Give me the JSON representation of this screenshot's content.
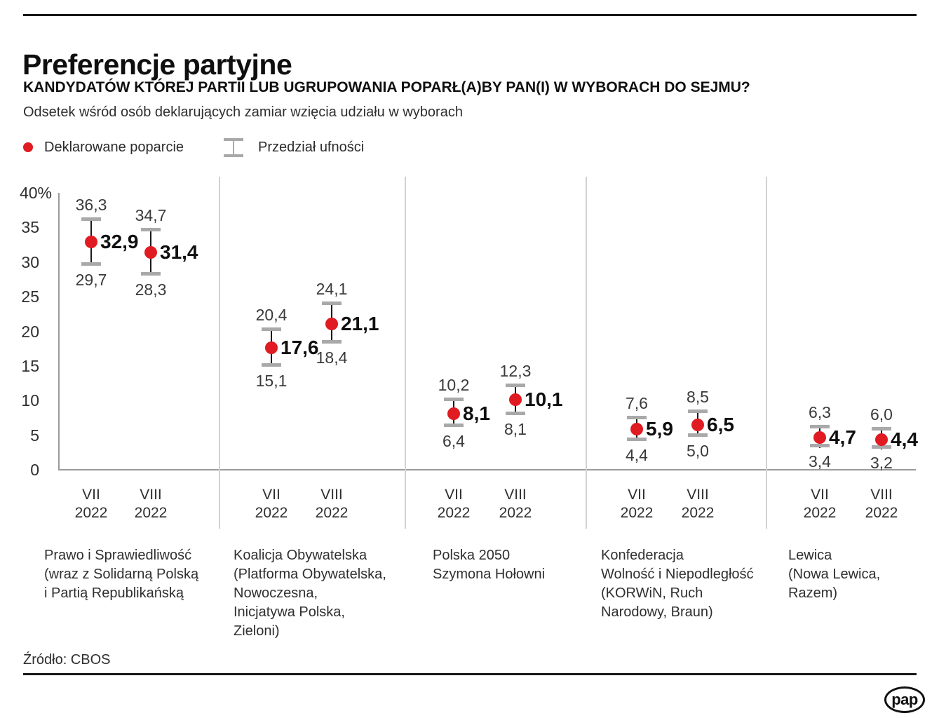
{
  "header": {
    "title": "Preferencje partyjne",
    "question": "KANDYDATÓW KTÓREJ PARTII LUB UGRUPOWANIA POPARŁ(A)BY PAN(I) W WYBORACH DO SEJMU?",
    "subtitle": "Odsetek wśród osób deklarujących zamiar wzięcia udziału w wyborach"
  },
  "legend": {
    "support_label": "Deklarowane poparcie",
    "support_icon": "red-dot-icon",
    "ci_label": "Przedział ufności",
    "ci_icon": "error-bar-icon"
  },
  "colors": {
    "accent_red": "#e01b22",
    "separator_gray": "#d2d2d2",
    "axis_gray": "#9b9b9b",
    "errorbar_cap_gray": "#a9a9a9",
    "text_dark": "#1a1a1a"
  },
  "footer": {
    "source": "Źródło: CBOS",
    "logo": "pap"
  },
  "chart_data": {
    "type": "scatter",
    "subtype": "dot-with-error-bars",
    "title": "Preferencje partyjne",
    "ylabel": "%",
    "ylim": [
      0,
      40
    ],
    "grid": false,
    "legend_position": "top-left",
    "y_axis": {
      "ticks": [
        {
          "v": 40,
          "label": "40%"
        },
        {
          "v": 35,
          "label": "35"
        },
        {
          "v": 30,
          "label": "30"
        },
        {
          "v": 25,
          "label": "25"
        },
        {
          "v": 20,
          "label": "20"
        },
        {
          "v": 15,
          "label": "15"
        },
        {
          "v": 10,
          "label": "10"
        },
        {
          "v": 5,
          "label": "5"
        },
        {
          "v": 0,
          "label": "0"
        }
      ]
    },
    "groups": [
      {
        "party": [
          "Prawo i Sprawiedliwość",
          "(wraz z Solidarną Polską",
          "i Partią Republikańską"
        ],
        "points": [
          {
            "period": [
              "VII",
              "2022"
            ],
            "value": 32.9,
            "label": "32,9",
            "ci_low": 29.7,
            "ci_low_label": "29,7",
            "ci_high": 36.3,
            "ci_high_label": "36,3"
          },
          {
            "period": [
              "VIII",
              "2022"
            ],
            "value": 31.4,
            "label": "31,4",
            "ci_low": 28.3,
            "ci_low_label": "28,3",
            "ci_high": 34.7,
            "ci_high_label": "34,7"
          }
        ]
      },
      {
        "party": [
          "Koalicja Obywatelska",
          "(Platforma Obywatelska,",
          "Nowoczesna,",
          "Inicjatywa Polska,",
          "Zieloni)"
        ],
        "points": [
          {
            "period": [
              "VII",
              "2022"
            ],
            "value": 17.6,
            "label": "17,6",
            "ci_low": 15.1,
            "ci_low_label": "15,1",
            "ci_high": 20.4,
            "ci_high_label": "20,4"
          },
          {
            "period": [
              "VIII",
              "2022"
            ],
            "value": 21.1,
            "label": "21,1",
            "ci_low": 18.4,
            "ci_low_label": "18,4",
            "ci_high": 24.1,
            "ci_high_label": "24,1"
          }
        ]
      },
      {
        "party": [
          "Polska 2050",
          "Szymona Hołowni"
        ],
        "points": [
          {
            "period": [
              "VII",
              "2022"
            ],
            "value": 8.1,
            "label": "8,1",
            "ci_low": 6.4,
            "ci_low_label": "6,4",
            "ci_high": 10.2,
            "ci_high_label": "10,2"
          },
          {
            "period": [
              "VIII",
              "2022"
            ],
            "value": 10.1,
            "label": "10,1",
            "ci_low": 8.1,
            "ci_low_label": "8,1",
            "ci_high": 12.3,
            "ci_high_label": "12,3"
          }
        ]
      },
      {
        "party": [
          "Konfederacja",
          "Wolność i Niepodległość",
          "(KORWiN, Ruch",
          "Narodowy, Braun)"
        ],
        "points": [
          {
            "period": [
              "VII",
              "2022"
            ],
            "value": 5.9,
            "label": "5,9",
            "ci_low": 4.4,
            "ci_low_label": "4,4",
            "ci_high": 7.6,
            "ci_high_label": "7,6"
          },
          {
            "period": [
              "VIII",
              "2022"
            ],
            "value": 6.5,
            "label": "6,5",
            "ci_low": 5.0,
            "ci_low_label": "5,0",
            "ci_high": 8.5,
            "ci_high_label": "8,5"
          }
        ]
      },
      {
        "party": [
          "Lewica",
          "(Nowa Lewica,",
          "Razem)"
        ],
        "points": [
          {
            "period": [
              "VII",
              "2022"
            ],
            "value": 4.7,
            "label": "4,7",
            "ci_low": 3.4,
            "ci_low_label": "3,4",
            "ci_high": 6.3,
            "ci_high_label": "6,3"
          },
          {
            "period": [
              "VIII",
              "2022"
            ],
            "value": 4.4,
            "label": "4,4",
            "ci_low": 3.2,
            "ci_low_label": "3,2",
            "ci_high": 6.0,
            "ci_high_label": "6,0"
          }
        ]
      }
    ]
  }
}
